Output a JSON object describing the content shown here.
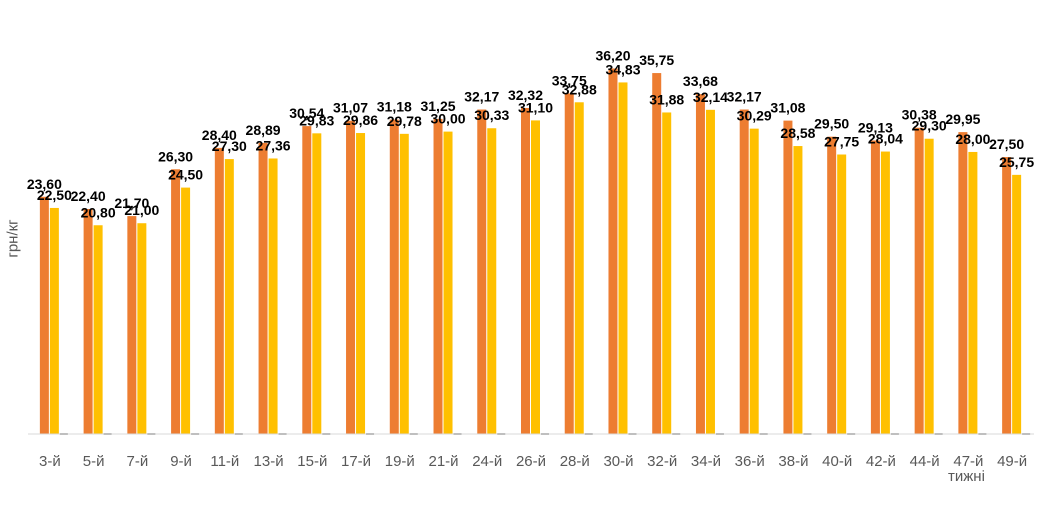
{
  "chart_data": {
    "type": "bar",
    "ylabel": "грн/кг",
    "xlabel": "тижні",
    "ylim": [
      0,
      37
    ],
    "categories": [
      "3-й",
      "5-й",
      "7-й",
      "9-й",
      "11-й",
      "13-й",
      "15-й",
      "17-й",
      "19-й",
      "21-й",
      "24-й",
      "26-й",
      "28-й",
      "30-й",
      "32-й",
      "34-й",
      "36-й",
      "38-й",
      "40-й",
      "42-й",
      "44-й",
      "47-й",
      "49-й"
    ],
    "series": [
      {
        "color": "#ED7D31",
        "values": [
          23.6,
          22.4,
          21.7,
          26.3,
          28.4,
          28.89,
          30.54,
          31.07,
          31.18,
          31.25,
          32.17,
          32.32,
          33.75,
          36.2,
          35.75,
          33.68,
          32.17,
          31.08,
          29.5,
          29.13,
          30.38,
          29.95,
          27.5
        ],
        "labels": [
          "23,60",
          "22,40",
          "21,70",
          "26,30",
          "28,40",
          "28,89",
          "30,54",
          "31,07",
          "31,18",
          "31,25",
          "32,17",
          "32,32",
          "33,75",
          "36,20",
          "35,75",
          "33,68",
          "32,17",
          "31,08",
          "29,50",
          "29,13",
          "30,38",
          "29,95",
          "27,50"
        ]
      },
      {
        "color": "#FFC000",
        "values": [
          22.5,
          20.8,
          21.0,
          24.5,
          27.3,
          27.36,
          29.83,
          29.86,
          29.78,
          30.0,
          30.33,
          31.1,
          32.88,
          34.83,
          31.88,
          32.14,
          30.29,
          28.58,
          27.75,
          28.04,
          29.3,
          28.0,
          25.75
        ],
        "labels": [
          "22,50",
          "20,80",
          "21,00",
          "24,50",
          "27,30",
          "27,36",
          "29,83",
          "29,86",
          "29,78",
          "30,00",
          "30,33",
          "31,10",
          "32,88",
          "34,83",
          "31,88",
          "32,14",
          "30,29",
          "28,58",
          "27,75",
          "28,04",
          "29,30",
          "28,00",
          "25,75"
        ]
      }
    ],
    "axis_color": "#D9D9D9",
    "label_color": "#595959",
    "value_label_color": "#000000",
    "grid": false,
    "legend": "none"
  }
}
